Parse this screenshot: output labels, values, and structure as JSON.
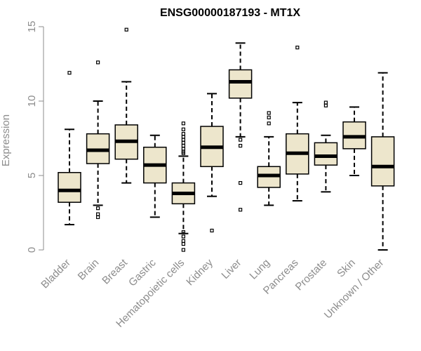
{
  "colors": {
    "box_fill": "#EDE6CC",
    "stroke": "#000000",
    "axis": "#8c8c8c",
    "text": "#8c8c8c",
    "title": "#000000"
  },
  "chart_data": {
    "type": "box",
    "title": "ENSG00000187193 - MT1X",
    "xlabel": "",
    "ylabel": "Expression",
    "ylim": [
      0,
      15
    ],
    "yticks": [
      0,
      5,
      10,
      15
    ],
    "grid": false,
    "categories": [
      "Bladder",
      "Brain",
      "Breast",
      "Gastric",
      "Hematopoietic cells",
      "Kidney",
      "Liver",
      "Lung",
      "Pancreas",
      "Prostate",
      "Skin",
      "Unknown / Other"
    ],
    "boxes": [
      {
        "name": "Bladder",
        "whisker_low": 1.7,
        "q1": 3.2,
        "median": 4.0,
        "q3": 5.2,
        "whisker_high": 8.1,
        "outliers": [
          11.9
        ]
      },
      {
        "name": "Brain",
        "whisker_low": 3.0,
        "q1": 5.8,
        "median": 6.7,
        "q3": 7.8,
        "whisker_high": 10.0,
        "outliers": [
          2.8,
          2.4,
          2.2,
          12.6
        ]
      },
      {
        "name": "Breast",
        "whisker_low": 4.5,
        "q1": 6.1,
        "median": 7.3,
        "q3": 8.4,
        "whisker_high": 11.3,
        "outliers": [
          14.8
        ]
      },
      {
        "name": "Gastric",
        "whisker_low": 2.2,
        "q1": 4.5,
        "median": 5.7,
        "q3": 6.9,
        "whisker_high": 7.7,
        "outliers": []
      },
      {
        "name": "Hematopoietic cells",
        "whisker_low": 1.1,
        "q1": 3.1,
        "median": 3.8,
        "q3": 4.5,
        "whisker_high": 6.3,
        "outliers": [
          0.0,
          0.4,
          0.6,
          0.9,
          1.2,
          6.5,
          6.6,
          6.8,
          7.0,
          7.2,
          7.4,
          7.6,
          7.8,
          8.1,
          8.5
        ]
      },
      {
        "name": "Kidney",
        "whisker_low": 3.6,
        "q1": 5.6,
        "median": 6.9,
        "q3": 8.3,
        "whisker_high": 10.5,
        "outliers": [
          1.3
        ]
      },
      {
        "name": "Liver",
        "whisker_low": 7.6,
        "q1": 10.2,
        "median": 11.3,
        "q3": 12.1,
        "whisker_high": 13.9,
        "outliers": [
          7.4,
          7.0,
          4.5,
          2.7
        ]
      },
      {
        "name": "Lung",
        "whisker_low": 3.0,
        "q1": 4.2,
        "median": 5.0,
        "q3": 5.6,
        "whisker_high": 7.6,
        "outliers": [
          8.5,
          8.9,
          9.2
        ]
      },
      {
        "name": "Pancreas",
        "whisker_low": 3.3,
        "q1": 5.1,
        "median": 6.5,
        "q3": 7.8,
        "whisker_high": 9.9,
        "outliers": [
          13.6
        ]
      },
      {
        "name": "Prostate",
        "whisker_low": 3.9,
        "q1": 5.7,
        "median": 6.3,
        "q3": 7.2,
        "whisker_high": 7.7,
        "outliers": [
          9.7,
          9.9
        ]
      },
      {
        "name": "Skin",
        "whisker_low": 5.0,
        "q1": 6.8,
        "median": 7.6,
        "q3": 8.6,
        "whisker_high": 9.6,
        "outliers": []
      },
      {
        "name": "Unknown / Other",
        "whisker_low": 0.0,
        "q1": 4.3,
        "median": 5.6,
        "q3": 7.6,
        "whisker_high": 11.9,
        "outliers": []
      }
    ]
  }
}
